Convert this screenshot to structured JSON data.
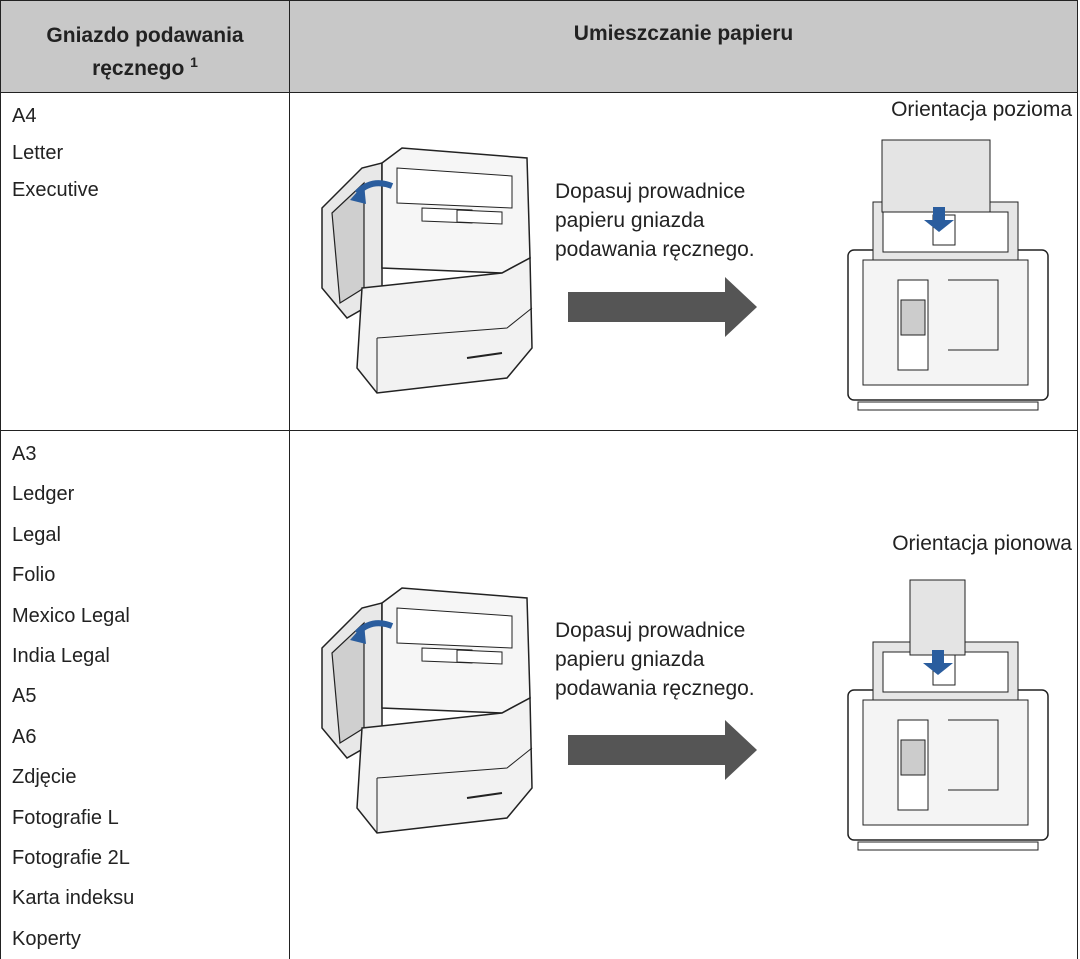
{
  "header": {
    "column_1": "Gniazdo podawania ręcznego",
    "footnote_mark": "1",
    "column_2": "Umieszczanie papieru"
  },
  "rows": [
    {
      "sizes": [
        "A4",
        "Letter",
        "Executive"
      ],
      "instruction": [
        "Dopasuj prowadnice",
        "papieru gniazda",
        "podawania ręcznego."
      ],
      "orientation": "Orientacja pozioma"
    },
    {
      "sizes": [
        "A3",
        "Ledger",
        "Legal",
        "Folio",
        "Mexico Legal",
        "India Legal",
        "A5",
        "A6",
        "Zdjęcie",
        "Fotografie L",
        "Fotografie 2L",
        "Karta indeksu",
        "Koperty"
      ],
      "instruction": [
        "Dopasuj prowadnice",
        "papieru gniazda",
        "podawania ręcznego."
      ],
      "orientation": "Orientacja pionowa"
    }
  ]
}
